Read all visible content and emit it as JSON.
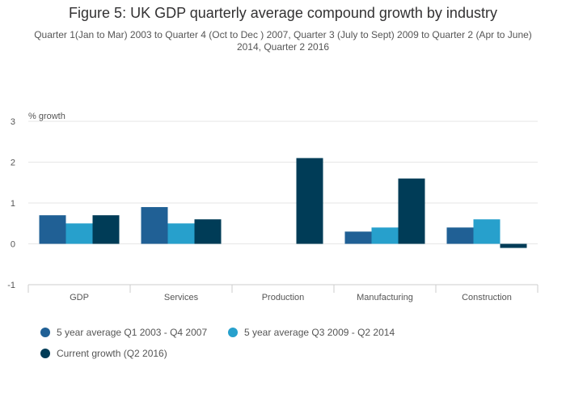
{
  "title": "Figure 5: UK GDP quarterly average compound growth by industry",
  "subtitle": "Quarter 1(Jan to Mar) 2003 to Quarter 4 (Oct to Dec ) 2007, Quarter 3 (July to Sept) 2009 to Quarter 2 (Apr to June) 2014, Quarter 2 2016",
  "chart_data": {
    "type": "bar",
    "title": "Figure 5: UK GDP quarterly average compound growth by industry",
    "ylabel": "% growth",
    "xlabel": "",
    "ylim": [
      -1,
      3
    ],
    "yticks": [
      -1,
      0,
      1,
      2,
      3
    ],
    "grid": true,
    "legend_position": "bottom",
    "categories": [
      "GDP",
      "Services",
      "Production",
      "Manufacturing",
      "Construction"
    ],
    "series": [
      {
        "name": "5 year average Q1 2003 - Q4 2007",
        "color": "#206095",
        "values": [
          0.7,
          0.9,
          0.0,
          0.3,
          0.4
        ]
      },
      {
        "name": "5 year average Q3 2009 - Q2 2014",
        "color": "#27a0cc",
        "values": [
          0.5,
          0.5,
          0.0,
          0.4,
          0.6
        ]
      },
      {
        "name": "Current growth (Q2 2016)",
        "color": "#003c57",
        "values": [
          0.7,
          0.6,
          2.1,
          1.6,
          -0.1
        ]
      }
    ]
  }
}
